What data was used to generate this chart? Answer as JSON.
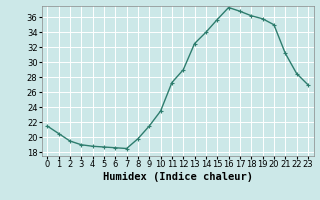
{
  "title": "",
  "xlabel": "Humidex (Indice chaleur)",
  "ylabel": "",
  "x": [
    0,
    1,
    2,
    3,
    4,
    5,
    6,
    7,
    8,
    9,
    10,
    11,
    12,
    13,
    14,
    15,
    16,
    17,
    18,
    19,
    20,
    21,
    22,
    23
  ],
  "y": [
    21.5,
    20.5,
    19.5,
    19.0,
    18.8,
    18.7,
    18.6,
    18.5,
    19.8,
    21.5,
    23.5,
    27.3,
    29.0,
    32.5,
    34.0,
    35.7,
    37.3,
    36.8,
    36.2,
    35.8,
    35.0,
    31.2,
    28.5,
    27.0
  ],
  "line_color": "#2e7d6e",
  "marker": "+",
  "marker_size": 3,
  "marker_edge_width": 0.8,
  "background_color": "#cce8e8",
  "grid_color": "#ffffff",
  "ylim": [
    17.5,
    37.5
  ],
  "xlim": [
    -0.5,
    23.5
  ],
  "yticks": [
    18,
    20,
    22,
    24,
    26,
    28,
    30,
    32,
    34,
    36
  ],
  "xticks": [
    0,
    1,
    2,
    3,
    4,
    5,
    6,
    7,
    8,
    9,
    10,
    11,
    12,
    13,
    14,
    15,
    16,
    17,
    18,
    19,
    20,
    21,
    22,
    23
  ],
  "tick_fontsize": 6,
  "xlabel_fontsize": 7.5,
  "line_width": 1.0
}
